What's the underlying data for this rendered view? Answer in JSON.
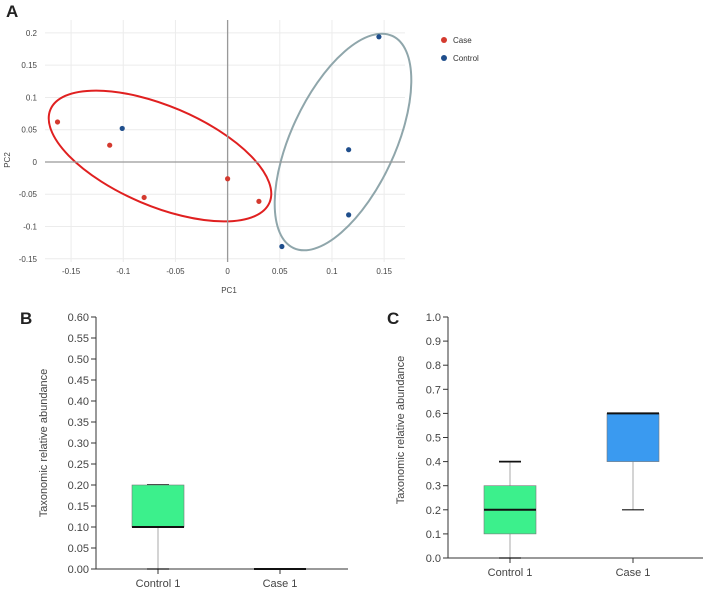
{
  "panels": {
    "a": "A",
    "b": "B",
    "c": "C"
  },
  "colors": {
    "case": "#d43a2f",
    "control": "#1f4e8c",
    "case_ellipse": "#e02020",
    "control_ellipse": "#8fa6ab",
    "box_b": "#3cf08c",
    "box_c_control": "#3cf08c",
    "box_c_case": "#3a9af0"
  },
  "chart_data": [
    {
      "type": "scatter",
      "title": "",
      "xlabel": "PC1",
      "ylabel": "PC2",
      "xlim": [
        -0.175,
        0.17
      ],
      "ylim": [
        -0.155,
        0.22
      ],
      "xticks": [
        "-0.15",
        "-0.1",
        "-0.05",
        "0",
        "0.05",
        "0.1",
        "0.15"
      ],
      "yticks": [
        "0.2",
        "0.15",
        "0.1",
        "0.05",
        "0",
        "-0.05",
        "-0.1",
        "-0.15"
      ],
      "grid": true,
      "legend_position": "top-right",
      "series": [
        {
          "name": "Case",
          "points": [
            [
              -0.163,
              0.062
            ],
            [
              -0.113,
              0.026
            ],
            [
              -0.08,
              -0.055
            ],
            [
              0.0,
              -0.026
            ],
            [
              0.03,
              -0.061
            ]
          ]
        },
        {
          "name": "Control",
          "points": [
            [
              -0.101,
              0.052
            ],
            [
              0.052,
              -0.131
            ],
            [
              0.116,
              0.019
            ],
            [
              0.116,
              -0.082
            ],
            [
              0.145,
              0.194
            ]
          ]
        }
      ]
    },
    {
      "type": "box",
      "title": "",
      "ylabel": "Taxonomic relative abundance",
      "ylim": [
        0,
        0.6
      ],
      "yticks": [
        "0.00",
        "0.05",
        "0.10",
        "0.15",
        "0.20",
        "0.25",
        "0.30",
        "0.35",
        "0.40",
        "0.45",
        "0.50",
        "0.55",
        "0.60"
      ],
      "categories": [
        "Control 1",
        "Case 1"
      ],
      "boxes": [
        {
          "min": 0.0,
          "q1": 0.1,
          "median": 0.1,
          "q3": 0.2,
          "max": 0.2
        },
        {
          "min": 0.0,
          "q1": 0.0,
          "median": 0.0,
          "q3": 0.0,
          "max": 0.0
        }
      ]
    },
    {
      "type": "box",
      "title": "",
      "ylabel": "Taxonomic relative abundance",
      "ylim": [
        0,
        1.0
      ],
      "yticks": [
        "0.0",
        "0.1",
        "0.2",
        "0.3",
        "0.4",
        "0.5",
        "0.6",
        "0.7",
        "0.8",
        "0.9",
        "1.0"
      ],
      "categories": [
        "Control 1",
        "Case 1"
      ],
      "boxes": [
        {
          "min": 0.0,
          "q1": 0.1,
          "median": 0.2,
          "q3": 0.3,
          "max": 0.4
        },
        {
          "min": 0.2,
          "q1": 0.4,
          "median": 0.6,
          "q3": 0.6,
          "max": 0.6
        }
      ]
    }
  ]
}
